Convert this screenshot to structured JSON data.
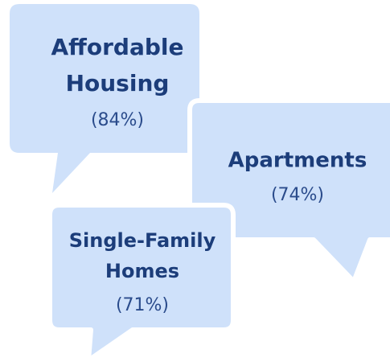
{
  "bubbles": [
    {
      "label_lines": [
        "Affordable",
        "Housing"
      ],
      "value_label": "(84%)"
    },
    {
      "label_lines": [
        "Apartments"
      ],
      "value_label": "(74%)"
    },
    {
      "label_lines": [
        "Single-Family",
        "Homes"
      ],
      "value_label": "(71%)"
    }
  ]
}
